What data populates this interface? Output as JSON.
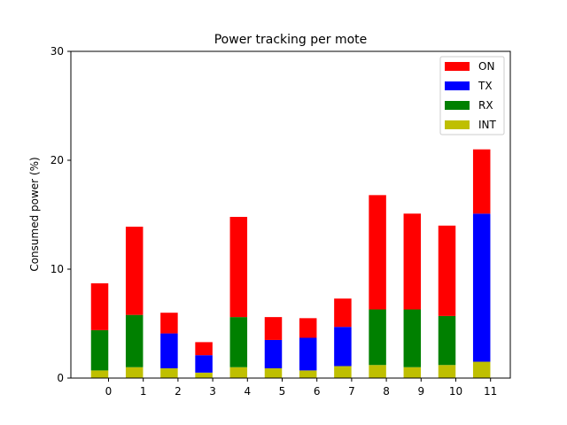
{
  "chart_data": {
    "type": "bar",
    "stacked": true,
    "title": "Power tracking per mote",
    "xlabel": "",
    "ylabel": "Consumed power (%)",
    "categories": [
      "0",
      "1",
      "2",
      "3",
      "4",
      "5",
      "6",
      "7",
      "8",
      "9",
      "10",
      "11"
    ],
    "ylim": [
      0,
      30
    ],
    "yticks": [
      0,
      10,
      20,
      30
    ],
    "grid": false,
    "legend_position": "top-right",
    "series": [
      {
        "name": "INT",
        "color": "#bfbf00",
        "values": [
          0.7,
          1.0,
          0.9,
          0.5,
          1.0,
          0.9,
          0.7,
          1.1,
          1.2,
          1.0,
          1.2,
          1.5
        ]
      },
      {
        "name": "RX",
        "color": "#008000",
        "values": [
          3.7,
          4.8,
          0.0,
          0.0,
          4.6,
          0.0,
          0.0,
          0.0,
          5.1,
          5.3,
          4.5,
          0.0
        ]
      },
      {
        "name": "TX",
        "color": "#0000ff",
        "values": [
          0.0,
          0.0,
          3.2,
          1.6,
          0.0,
          2.6,
          3.0,
          3.6,
          0.0,
          0.0,
          0.0,
          13.6
        ]
      },
      {
        "name": "ON",
        "color": "#ff0000",
        "values": [
          4.3,
          8.1,
          1.9,
          1.2,
          9.2,
          2.1,
          1.8,
          2.6,
          10.5,
          8.8,
          8.3,
          5.9
        ]
      }
    ],
    "legend_order": [
      "ON",
      "TX",
      "RX",
      "INT"
    ]
  }
}
